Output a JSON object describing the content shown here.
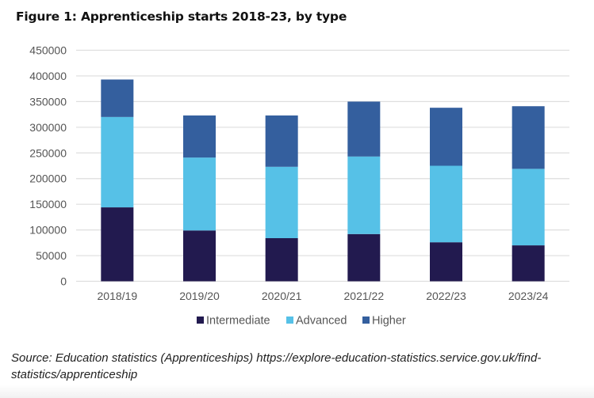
{
  "chart_data": {
    "type": "bar",
    "stacked": true,
    "title": "Figure 1: Apprenticeship starts 2018-23, by type",
    "xlabel": "",
    "ylabel": "",
    "ylim": [
      0,
      450000
    ],
    "yticks": [
      0,
      50000,
      100000,
      150000,
      200000,
      250000,
      300000,
      350000,
      400000,
      450000
    ],
    "ytick_labels": [
      "0",
      "50000",
      "100000",
      "150000",
      "200000",
      "250000",
      "300000",
      "350000",
      "400000",
      "450000"
    ],
    "grid": true,
    "legend_position": "bottom",
    "categories": [
      "2018/19",
      "2019/20",
      "2020/21",
      "2021/22",
      "2022/23",
      "2023/24"
    ],
    "series": [
      {
        "name": "Intermediate",
        "color": "#221a4f",
        "values": [
          144000,
          99000,
          84000,
          92000,
          76000,
          70000
        ]
      },
      {
        "name": "Advanced",
        "color": "#56c1e7",
        "values": [
          176000,
          142000,
          139000,
          151000,
          149000,
          149000
        ]
      },
      {
        "name": "Higher",
        "color": "#345f9e",
        "values": [
          73000,
          82000,
          100000,
          107000,
          113000,
          122000
        ]
      }
    ]
  },
  "source_note": "Source: Education statistics (Apprenticeships) https://explore-education-statistics.service.gov.uk/find-statistics/apprenticeship"
}
